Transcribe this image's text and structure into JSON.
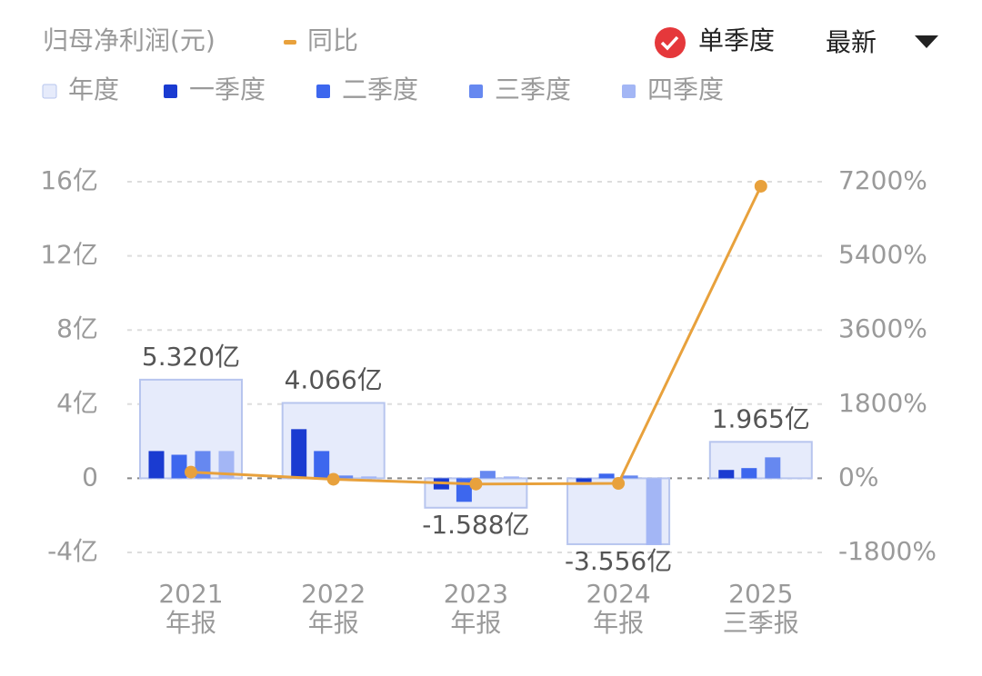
{
  "chart_data": {
    "type": "bar",
    "title": "归母净利润(元)",
    "mode": "单季度",
    "period": "最新",
    "categories": [
      [
        "2021",
        "年报"
      ],
      [
        "2022",
        "年报"
      ],
      [
        "2023",
        "年报"
      ],
      [
        "2024",
        "年报"
      ],
      [
        "2025",
        "三季报"
      ]
    ],
    "series": [
      {
        "name": "年度",
        "color": "#e6ebfb",
        "values": [
          5.32,
          4.066,
          -1.588,
          -3.556,
          1.965
        ],
        "value_labels": [
          "5.320亿",
          "4.066亿",
          "-1.588亿",
          "-3.556亿",
          "1.965亿"
        ]
      },
      {
        "name": "一季度",
        "color": "#1a3bd1",
        "values": [
          1.47,
          2.65,
          -0.6,
          -0.2,
          0.45
        ]
      },
      {
        "name": "二季度",
        "color": "#3d67ee",
        "values": [
          1.27,
          1.47,
          -1.27,
          0.25,
          0.55
        ]
      },
      {
        "name": "三季度",
        "color": "#6688f0",
        "values": [
          1.47,
          0.15,
          0.4,
          0.15,
          1.13
        ]
      },
      {
        "name": "四季度",
        "color": "#a3b6f5",
        "values": [
          1.47,
          0.1,
          0.1,
          -3.6,
          null
        ]
      },
      {
        "name": "同比",
        "type": "line",
        "axis": "y2",
        "color": "#e8a13c",
        "values": [
          150,
          -23.6,
          -139,
          -124,
          7090
        ]
      }
    ],
    "ylim": [
      -4,
      16
    ],
    "yticks": [
      {
        "value": -4,
        "label": "-4亿"
      },
      0,
      {
        "value": 4,
        "label": "4亿"
      },
      {
        "value": 8,
        "label": "8亿"
      },
      {
        "value": 12,
        "label": "12亿"
      },
      {
        "value": 16,
        "label": "16亿"
      }
    ],
    "y2lim": [
      -1800,
      7200
    ],
    "y2ticks": [
      {
        "value": -1800,
        "label": "-1800%"
      },
      {
        "value": 0,
        "label": "0%"
      },
      {
        "value": 1800,
        "label": "1800%"
      },
      {
        "value": 3600,
        "label": "3600%"
      },
      {
        "value": 5400,
        "label": "5400%"
      },
      {
        "value": 7200,
        "label": "7200%"
      }
    ],
    "grid": true
  }
}
